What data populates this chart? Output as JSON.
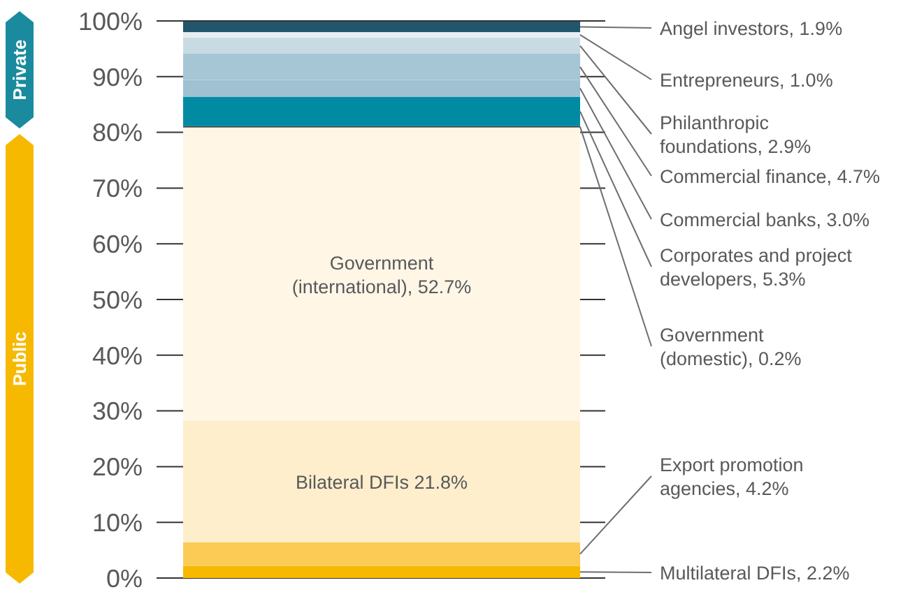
{
  "chart_data": {
    "type": "bar",
    "stacked": true,
    "categories": [
      null
    ],
    "ylim": [
      0,
      100
    ],
    "yticks": [
      {
        "value": 0,
        "label": "0%"
      },
      {
        "value": 10,
        "label": "10%"
      },
      {
        "value": 20,
        "label": "20%"
      },
      {
        "value": 30,
        "label": "30%"
      },
      {
        "value": 40,
        "label": "40%"
      },
      {
        "value": 50,
        "label": "50%"
      },
      {
        "value": 60,
        "label": "60%"
      },
      {
        "value": 70,
        "label": "70%"
      },
      {
        "value": 80,
        "label": "80%"
      },
      {
        "value": 90,
        "label": "90%"
      },
      {
        "value": 100,
        "label": "100%"
      }
    ],
    "grid": "y",
    "annotations": [
      "Private",
      "Public"
    ],
    "series": [
      {
        "color": "#f6b900",
        "values": [
          2.2
        ],
        "value_labels": [
          "Multilateral DFIs, 2.2%"
        ]
      },
      {
        "color": "#fccb55",
        "values": [
          4.2
        ],
        "value_labels": [
          "Export promotion\nagencies, 4.2%"
        ]
      },
      {
        "color": "#feeecc",
        "values": [
          21.8
        ],
        "value_labels": [
          "Bilateral DFIs 21.8%"
        ]
      },
      {
        "color": "#fff6e6",
        "values": [
          52.7
        ],
        "value_labels": [
          "Government\n(international), 52.7%"
        ]
      },
      {
        "color": "#333333",
        "values": [
          0.2
        ],
        "value_labels": [
          "Government\n(domestic), 0.2%"
        ]
      },
      {
        "color": "#008ba3",
        "values": [
          5.3
        ],
        "value_labels": [
          "Corporates and project\ndevelopers, 5.3%"
        ]
      },
      {
        "color": "#9fc1d2",
        "values": [
          3.0
        ],
        "value_labels": [
          "Commercial banks, 3.0%"
        ]
      },
      {
        "color": "#a6c6d5",
        "values": [
          4.7
        ],
        "value_labels": [
          "Commercial finance, 4.7%"
        ]
      },
      {
        "color": "#c8dbe3",
        "values": [
          2.9
        ],
        "value_labels": [
          "Philanthropic\nfoundations, 2.9%"
        ]
      },
      {
        "color": "#e6eef2",
        "values": [
          1.0
        ],
        "value_labels": [
          "Entrepreneurs, 1.0%"
        ]
      },
      {
        "color": "#21566b",
        "values": [
          1.9
        ],
        "value_labels": [
          "Angel investors, 1.9%"
        ]
      }
    ]
  }
}
